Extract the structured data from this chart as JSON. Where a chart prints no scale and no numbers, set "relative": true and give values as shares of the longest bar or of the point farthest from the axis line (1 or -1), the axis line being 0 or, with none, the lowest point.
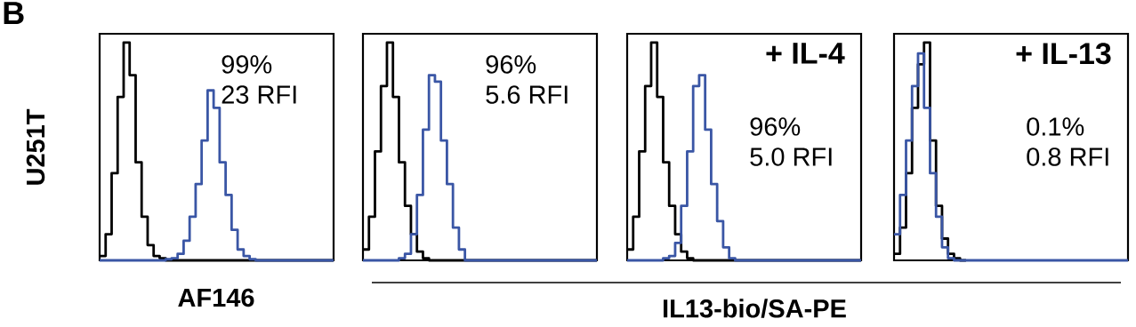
{
  "chart_data": [
    {
      "type": "step",
      "relative": true,
      "tick_labels": false,
      "title": "B",
      "ylabel": "U251T",
      "xlabel": "AF146",
      "annotations": [
        "99%",
        "23 RFI"
      ],
      "categories": [
        null,
        null,
        null,
        null,
        null,
        null,
        null,
        null,
        null,
        null,
        null,
        null,
        null,
        null,
        null,
        null,
        null,
        null,
        null,
        null,
        null,
        null,
        null,
        null,
        null,
        null,
        null,
        null,
        null,
        null,
        null,
        null,
        null,
        null,
        null,
        null,
        null,
        null,
        null,
        null
      ],
      "series": [
        {
          "color": "#000000",
          "values": [
            0.02,
            0.12,
            0.4,
            0.75,
            1.0,
            0.85,
            0.45,
            0.2,
            0.07,
            0.02,
            0.01,
            0,
            0,
            0,
            0,
            0,
            0,
            0,
            0,
            0,
            0,
            0,
            0,
            0,
            0,
            0,
            0,
            0,
            0,
            0,
            0,
            0,
            0,
            0,
            0,
            0,
            0,
            0,
            0,
            0
          ]
        },
        {
          "color": "#3a56a5",
          "values": [
            0,
            0,
            0,
            0,
            0,
            0,
            0,
            0,
            0,
            0,
            0,
            0.005,
            0.01,
            0.03,
            0.09,
            0.2,
            0.35,
            0.55,
            0.78,
            0.7,
            0.45,
            0.3,
            0.14,
            0.05,
            0.02,
            0.005,
            0,
            0,
            0,
            0,
            0,
            0,
            0,
            0,
            0,
            0,
            0,
            0,
            0,
            0
          ]
        }
      ]
    },
    {
      "type": "step",
      "relative": true,
      "tick_labels": false,
      "annotations": [
        "96%",
        "5.6 RFI"
      ],
      "categories": [
        null,
        null,
        null,
        null,
        null,
        null,
        null,
        null,
        null,
        null,
        null,
        null,
        null,
        null,
        null,
        null,
        null,
        null,
        null,
        null,
        null,
        null,
        null,
        null,
        null,
        null,
        null,
        null,
        null,
        null,
        null,
        null,
        null,
        null,
        null,
        null,
        null,
        null,
        null,
        null
      ],
      "series": [
        {
          "color": "#000000",
          "values": [
            0.05,
            0.2,
            0.5,
            0.8,
            1.0,
            0.75,
            0.45,
            0.25,
            0.12,
            0.04,
            0.01,
            0,
            0,
            0,
            0,
            0,
            0,
            0,
            0,
            0,
            0,
            0,
            0,
            0,
            0,
            0,
            0,
            0,
            0,
            0,
            0,
            0,
            0,
            0,
            0,
            0,
            0,
            0,
            0,
            0
          ]
        },
        {
          "color": "#3a56a5",
          "values": [
            0,
            0,
            0,
            0,
            0,
            0,
            0.01,
            0.03,
            0.12,
            0.3,
            0.6,
            0.85,
            0.82,
            0.55,
            0.35,
            0.15,
            0.05,
            0,
            0,
            0,
            0,
            0,
            0,
            0,
            0,
            0,
            0,
            0,
            0,
            0,
            0,
            0,
            0,
            0,
            0,
            0,
            0,
            0,
            0,
            0
          ]
        }
      ]
    },
    {
      "type": "step",
      "relative": true,
      "tick_labels": false,
      "title": "+ IL-4",
      "xlabel": "IL13-bio/SA-PE",
      "annotations": [
        "96%",
        "5.0 RFI"
      ],
      "categories": [
        null,
        null,
        null,
        null,
        null,
        null,
        null,
        null,
        null,
        null,
        null,
        null,
        null,
        null,
        null,
        null,
        null,
        null,
        null,
        null,
        null,
        null,
        null,
        null,
        null,
        null,
        null,
        null,
        null,
        null,
        null,
        null,
        null,
        null,
        null,
        null,
        null,
        null,
        null,
        null
      ],
      "series": [
        {
          "color": "#000000",
          "values": [
            0.05,
            0.2,
            0.5,
            0.8,
            1.0,
            0.75,
            0.45,
            0.25,
            0.12,
            0.04,
            0.01,
            0,
            0,
            0,
            0,
            0,
            0,
            0,
            0,
            0,
            0,
            0,
            0,
            0,
            0,
            0,
            0,
            0,
            0,
            0,
            0,
            0,
            0,
            0,
            0,
            0,
            0,
            0,
            0,
            0
          ]
        },
        {
          "color": "#3a56a5",
          "values": [
            0,
            0,
            0,
            0,
            0,
            0,
            0.01,
            0.02,
            0.08,
            0.25,
            0.5,
            0.8,
            0.85,
            0.6,
            0.35,
            0.18,
            0.06,
            0.01,
            0,
            0,
            0,
            0,
            0,
            0,
            0,
            0,
            0,
            0,
            0,
            0,
            0,
            0,
            0,
            0,
            0,
            0,
            0,
            0,
            0,
            0
          ]
        }
      ]
    },
    {
      "type": "step",
      "relative": true,
      "tick_labels": false,
      "title": "+ IL-13",
      "annotations": [
        "0.1%",
        "0.8 RFI"
      ],
      "categories": [
        null,
        null,
        null,
        null,
        null,
        null,
        null,
        null,
        null,
        null,
        null,
        null,
        null,
        null,
        null,
        null,
        null,
        null,
        null,
        null,
        null,
        null,
        null,
        null,
        null,
        null,
        null,
        null,
        null,
        null,
        null,
        null,
        null,
        null,
        null,
        null,
        null,
        null,
        null,
        null
      ],
      "series": [
        {
          "color": "#000000",
          "values": [
            0.03,
            0.15,
            0.4,
            0.7,
            0.9,
            1.0,
            0.55,
            0.25,
            0.1,
            0.03,
            0.01,
            0,
            0,
            null,
            null,
            null,
            null,
            null,
            null,
            null,
            null,
            null,
            null,
            null,
            null,
            null,
            null,
            null,
            null,
            null,
            null,
            null,
            null,
            null,
            null,
            null,
            null,
            null,
            null,
            null
          ]
        },
        {
          "color": "#3a56a5",
          "values": [
            0.12,
            0.3,
            0.55,
            0.8,
            0.95,
            0.7,
            0.4,
            0.2,
            0.06,
            0.01,
            0,
            0,
            0,
            0,
            0,
            0,
            0,
            0,
            0,
            0,
            0,
            0,
            0,
            0,
            0,
            0,
            0,
            0,
            0,
            0,
            0,
            0,
            0,
            0,
            0,
            0,
            0,
            0,
            0,
            0
          ]
        }
      ]
    }
  ]
}
